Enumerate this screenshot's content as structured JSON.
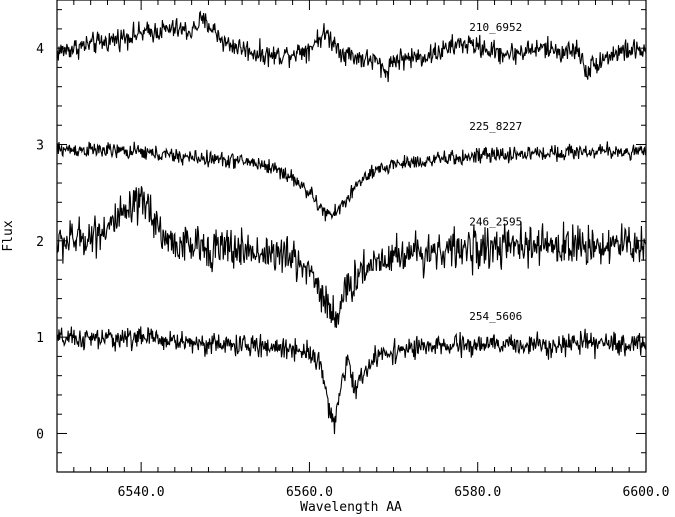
{
  "chart_data": {
    "type": "line",
    "title": "",
    "xlabel": "Wavelength AA",
    "ylabel": "Flux",
    "xlim": [
      6530,
      6600
    ],
    "ylim": [
      -0.4,
      4.5
    ],
    "x_ticks": [
      6540,
      6560,
      6580,
      6600
    ],
    "x_tick_labels": [
      "6540.0",
      "6560.0",
      "6580.0",
      "6600.0"
    ],
    "y_ticks": [
      0,
      1,
      2,
      3,
      4
    ],
    "y_tick_labels": [
      "0",
      "1",
      "2",
      "3",
      "4"
    ],
    "grid": false,
    "legend": "none",
    "line_color": "#000000",
    "series": [
      {
        "name": "210_6952",
        "label_at": [
          6579,
          4.18
        ],
        "x": [
          6530,
          6532,
          6534,
          6536,
          6538,
          6540,
          6542,
          6544,
          6546,
          6547,
          6548,
          6549,
          6550,
          6552,
          6554,
          6556,
          6558,
          6560,
          6561,
          6562,
          6563,
          6564,
          6566,
          6568,
          6569,
          6570,
          6572,
          6574,
          6576,
          6578,
          6580,
          6582,
          6584,
          6586,
          6588,
          6590,
          6592,
          6593,
          6594,
          6596,
          6598,
          6600
        ],
        "y": [
          3.96,
          4.0,
          4.04,
          4.07,
          4.12,
          4.15,
          4.18,
          4.2,
          4.17,
          4.28,
          4.25,
          4.15,
          4.05,
          4.0,
          3.94,
          3.92,
          3.95,
          4.0,
          4.1,
          4.15,
          4.05,
          3.95,
          3.9,
          3.86,
          3.75,
          3.88,
          3.9,
          3.92,
          3.98,
          4.05,
          4.02,
          3.96,
          3.94,
          3.98,
          4.0,
          3.96,
          3.98,
          3.75,
          3.85,
          3.94,
          3.98,
          3.97
        ],
        "noise": 0.07
      },
      {
        "name": "225_8227",
        "label_at": [
          6579,
          3.15
        ],
        "x": [
          6530,
          6535,
          6540,
          6545,
          6550,
          6553,
          6556,
          6558,
          6559,
          6560,
          6561,
          6562,
          6563,
          6564,
          6565,
          6566,
          6568,
          6570,
          6575,
          6580,
          6585,
          6590,
          6595,
          6600
        ],
        "y": [
          2.95,
          2.94,
          2.92,
          2.87,
          2.84,
          2.82,
          2.75,
          2.65,
          2.58,
          2.5,
          2.38,
          2.27,
          2.28,
          2.38,
          2.5,
          2.62,
          2.72,
          2.8,
          2.84,
          2.88,
          2.9,
          2.92,
          2.93,
          2.92
        ],
        "noise": 0.05
      },
      {
        "name": "246_2595",
        "label_at": [
          6579,
          2.16
        ],
        "x": [
          6530,
          6534,
          6537,
          6539,
          6540,
          6541,
          6542,
          6543,
          6545,
          6550,
          6555,
          6558,
          6560,
          6561,
          6562,
          6563,
          6564,
          6565,
          6566,
          6568,
          6570,
          6575,
          6580,
          6585,
          6590,
          6595,
          6600
        ],
        "y": [
          1.97,
          2.05,
          2.2,
          2.32,
          2.38,
          2.35,
          2.15,
          2.0,
          1.95,
          1.92,
          1.88,
          1.82,
          1.7,
          1.55,
          1.35,
          1.22,
          1.38,
          1.55,
          1.68,
          1.8,
          1.86,
          1.9,
          1.92,
          1.94,
          1.95,
          1.96,
          1.96
        ],
        "noise": 0.13
      },
      {
        "name": "254_5606",
        "label_at": [
          6579,
          1.18
        ],
        "x": [
          6530,
          6535,
          6540,
          6545,
          6550,
          6555,
          6558,
          6560,
          6561,
          6562,
          6562.5,
          6563,
          6563.5,
          6564,
          6564.5,
          6565,
          6565.5,
          6566,
          6567,
          6568,
          6570,
          6575,
          6580,
          6585,
          6590,
          6595,
          6600
        ],
        "y": [
          0.98,
          0.98,
          1.0,
          0.95,
          0.92,
          0.9,
          0.88,
          0.85,
          0.78,
          0.45,
          0.2,
          0.1,
          0.3,
          0.6,
          0.75,
          0.62,
          0.45,
          0.55,
          0.7,
          0.8,
          0.86,
          0.9,
          0.92,
          0.92,
          0.93,
          0.93,
          0.93
        ],
        "noise": 0.07
      }
    ]
  }
}
